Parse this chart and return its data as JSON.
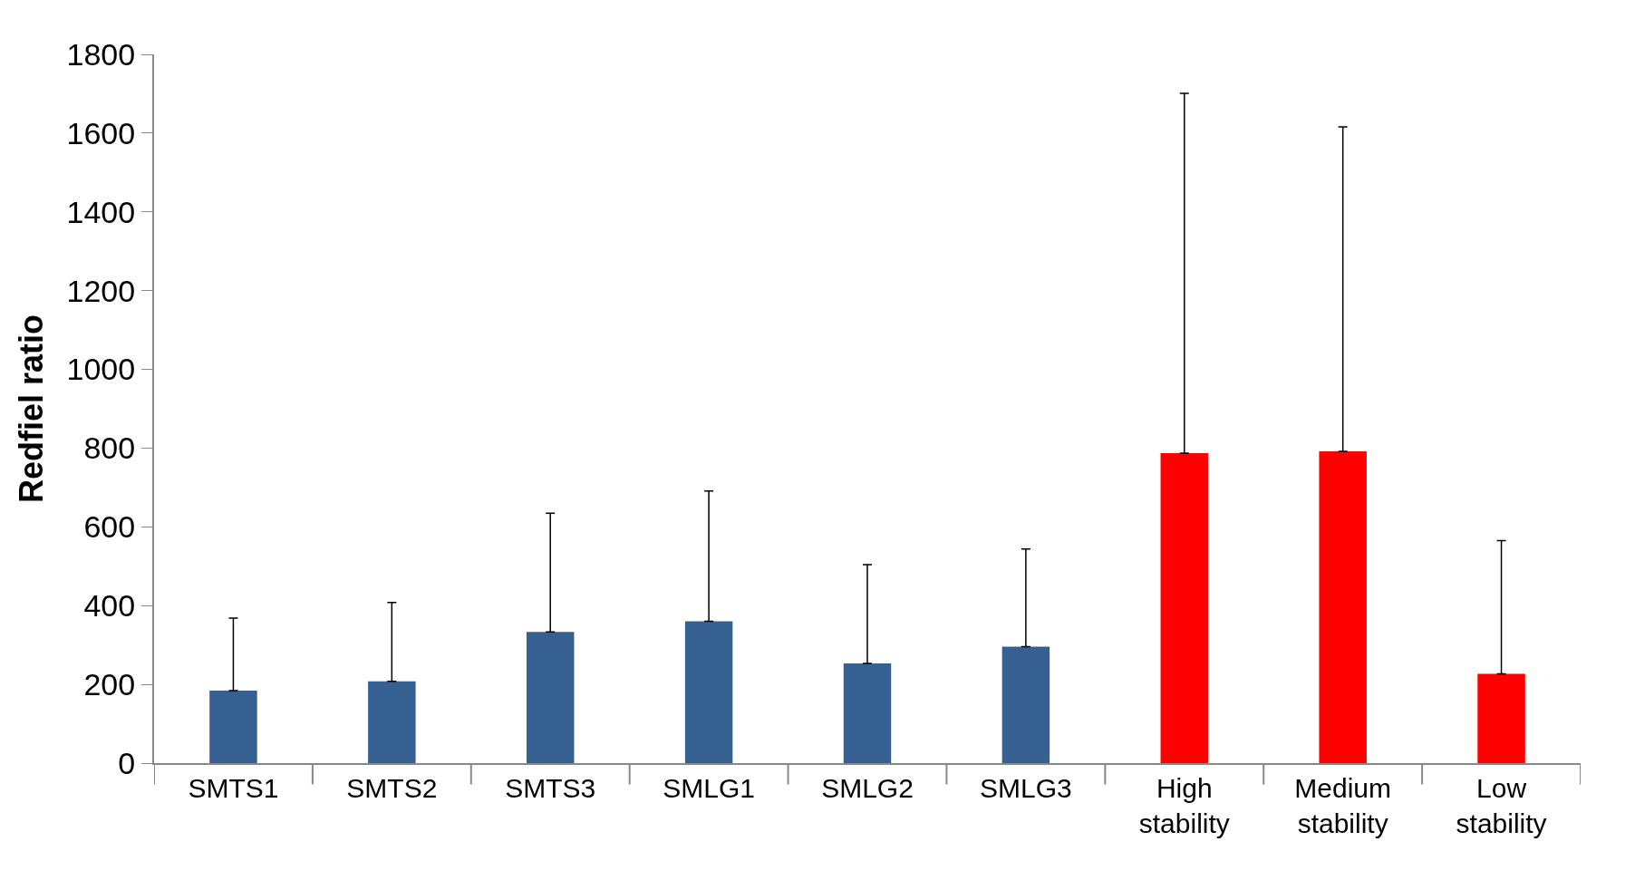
{
  "chart_data": {
    "type": "bar",
    "ylabel": "Redfiel ratio",
    "categories": [
      "SMTS1",
      "SMTS2",
      "SMTS3",
      "SMLG1",
      "SMLG2",
      "SMLG3",
      "High stability",
      "Medium stability",
      "Low stability"
    ],
    "values": [
      184,
      208,
      333,
      360,
      253,
      296,
      787,
      792,
      227
    ],
    "colors": [
      "#366092",
      "#366092",
      "#366092",
      "#366092",
      "#366092",
      "#366092",
      "#ff0000",
      "#ff0000",
      "#ff0000"
    ],
    "errors": [
      [
        184,
        368
      ],
      [
        208,
        408
      ],
      [
        333,
        635
      ],
      [
        360,
        691
      ],
      [
        253,
        504
      ],
      [
        296,
        544
      ],
      [
        787,
        1701
      ],
      [
        792,
        1616
      ],
      [
        227,
        565
      ]
    ],
    "ylim": [
      0,
      1800
    ],
    "yticks": [
      0,
      200,
      400,
      600,
      800,
      1000,
      1200,
      1400,
      1600,
      1800
    ]
  }
}
